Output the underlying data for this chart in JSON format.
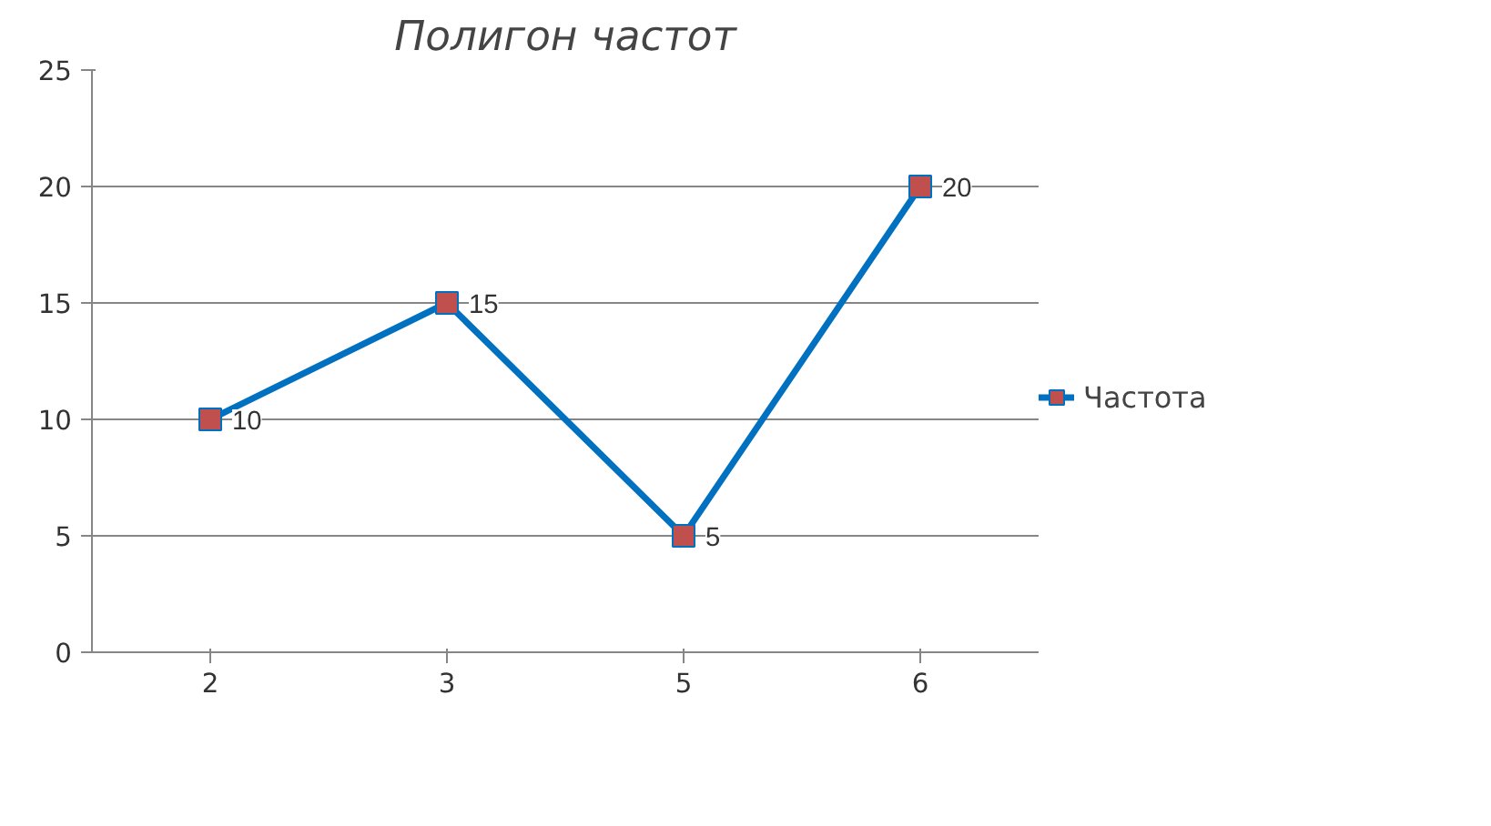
{
  "chart_data": {
    "type": "line",
    "title": "Полигон частот",
    "categories": [
      "2",
      "3",
      "5",
      "6"
    ],
    "series": [
      {
        "name": "Частота",
        "color": "#0070c0",
        "colors": [
          "#c0504d",
          "#c0504d",
          "#c0504d",
          "#c0504d"
        ],
        "values": [
          10,
          15,
          5,
          20
        ]
      }
    ],
    "marker": "square",
    "ylim": [
      0,
      25
    ],
    "yticks": [
      0,
      5,
      10,
      15,
      20,
      25
    ],
    "grid": "y",
    "legend": "right",
    "data_labels": true
  }
}
